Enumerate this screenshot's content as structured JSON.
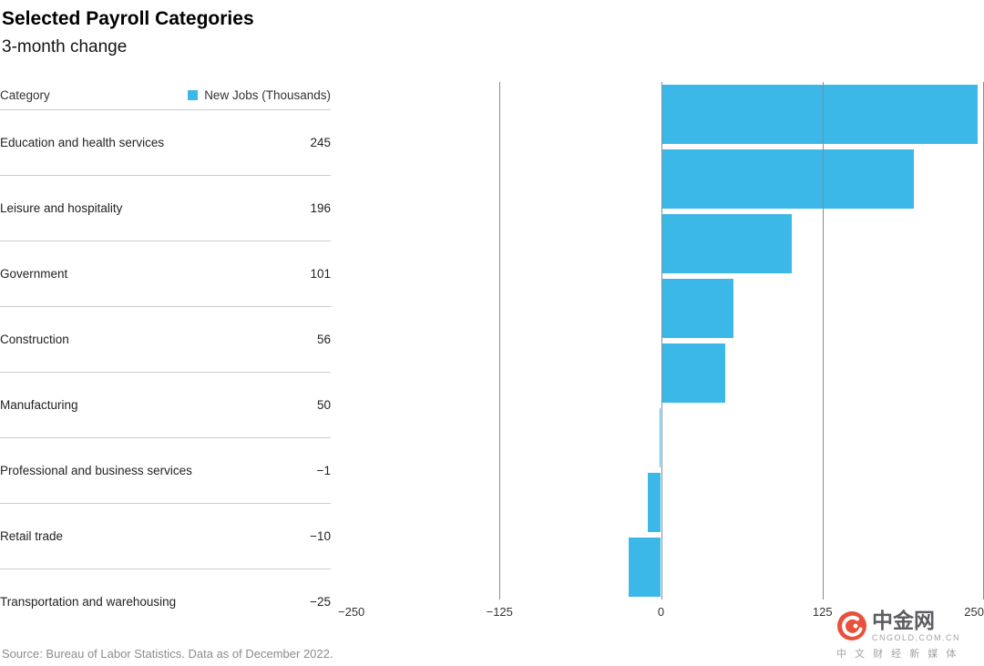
{
  "header": {
    "title": "Selected Payroll Categories",
    "subtitle": "3-month change"
  },
  "table": {
    "category_header": "Category",
    "legend_label": "New Jobs (Thousands)"
  },
  "chart_data": {
    "type": "bar",
    "orientation": "horizontal",
    "title": "Selected Payroll Categories",
    "subtitle": "3-month change",
    "legend": [
      "New Jobs (Thousands)"
    ],
    "categories": [
      "Education and health services",
      "Leisure and hospitality",
      "Government",
      "Construction",
      "Manufacturing",
      "Professional and business services",
      "Retail trade",
      "Transportation and warehousing"
    ],
    "values": [
      245,
      196,
      101,
      56,
      50,
      -1,
      -10,
      -25
    ],
    "xlim": [
      -250,
      250
    ],
    "xticks": [
      -250,
      -125,
      0,
      125,
      250
    ],
    "bar_color": "#3bb8e8",
    "grid": true,
    "legend_position": "top-left-table"
  },
  "source": "Source: Bureau of Labor Statistics. Data as of December 2022.",
  "watermark": {
    "brand": "中金网",
    "domain": "CNGOLD.COM.CN",
    "tagline": "中 文 财 经 新 媒 体",
    "logo_color": "#e8432c"
  }
}
